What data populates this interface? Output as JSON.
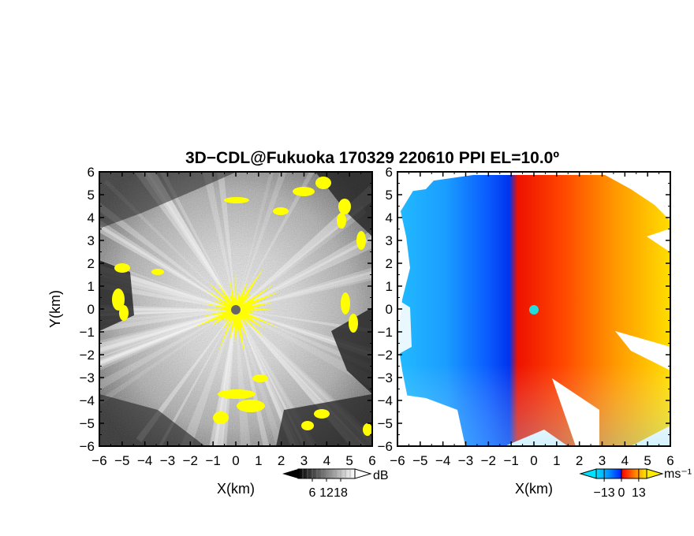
{
  "chart_data": {
    "title": "3D−CDL@Fukuoka 170329 220610 PPI EL=10.0º",
    "panels": [
      {
        "type": "heatmap",
        "field": "reflectivity",
        "xlabel": "X(km)",
        "ylabel": "Y(km)",
        "xlim": [
          -6,
          6
        ],
        "ylim": [
          -6,
          6
        ],
        "xticks": [
          "−6",
          "−5",
          "−4",
          "−3",
          "−2",
          "−1",
          "0",
          "1",
          "2",
          "3",
          "4",
          "5",
          "6"
        ],
        "yticks": [
          "−6",
          "−5",
          "−4",
          "−3",
          "−2",
          "−1",
          "0",
          "1",
          "2",
          "3",
          "4",
          "5",
          "6"
        ],
        "colorscale": "grayscale with yellow overlay",
        "overlay_color": "#ffff00",
        "colorbar": {
          "unit": "dB",
          "ticks": [
            "6",
            "12",
            "18"
          ],
          "range": [
            0,
            24
          ]
        }
      },
      {
        "type": "heatmap",
        "field": "doppler velocity",
        "xlabel": "X(km)",
        "ylabel": "",
        "xlim": [
          -6,
          6
        ],
        "ylim": [
          -6,
          6
        ],
        "xticks": [
          "−6",
          "−5",
          "−4",
          "−3",
          "−2",
          "−1",
          "0",
          "1",
          "2",
          "3",
          "4",
          "5",
          "6"
        ],
        "yticks": [
          "−6",
          "−5",
          "−4",
          "−3",
          "−2",
          "−1",
          "0",
          "1",
          "2",
          "3",
          "4",
          "5",
          "6"
        ],
        "colorscale": "cyan-blue (negative) to red-yellow (positive)",
        "colorbar": {
          "unit": "ms⁻¹",
          "ticks": [
            "−13",
            "0",
            "13"
          ],
          "range": [
            -19,
            19
          ]
        }
      }
    ],
    "radar_site": [
      0,
      0
    ]
  },
  "colors": {
    "overlay_yellow": "#ffff00",
    "site_marker_left": "#666666",
    "site_marker_right": "#22dddd",
    "vel_negative": "#0044ff",
    "vel_positive": "#ff2200"
  }
}
